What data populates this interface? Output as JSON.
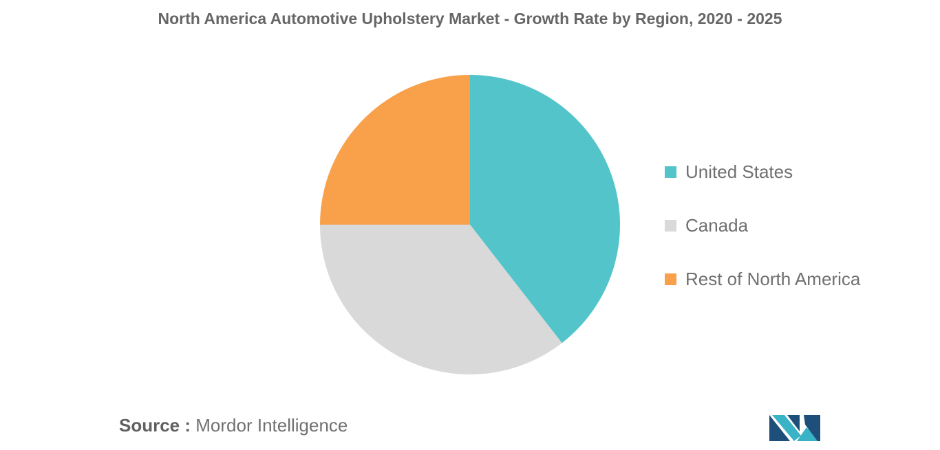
{
  "title": "North America Automotive Upholstery Market - Growth Rate by Region, 2020 - 2025",
  "chart_data": {
    "type": "pie",
    "title": "North America Automotive Upholstery Market - Growth Rate by Region, 2020 - 2025",
    "slices": [
      {
        "label": "United States",
        "value": 39.5,
        "color": "#53C4CA"
      },
      {
        "label": "Canada",
        "value": 35.5,
        "color": "#D9D9D9"
      },
      {
        "label": "Rest of North America",
        "value": 25,
        "color": "#F9A04A"
      }
    ],
    "legend_position": "right"
  },
  "source": {
    "prefix": "Source :",
    "name": "Mordor Intelligence"
  },
  "logo": {
    "icon": "mordor-intelligence-logo",
    "colors": [
      "#1E4E7A",
      "#3BB3C7"
    ]
  }
}
